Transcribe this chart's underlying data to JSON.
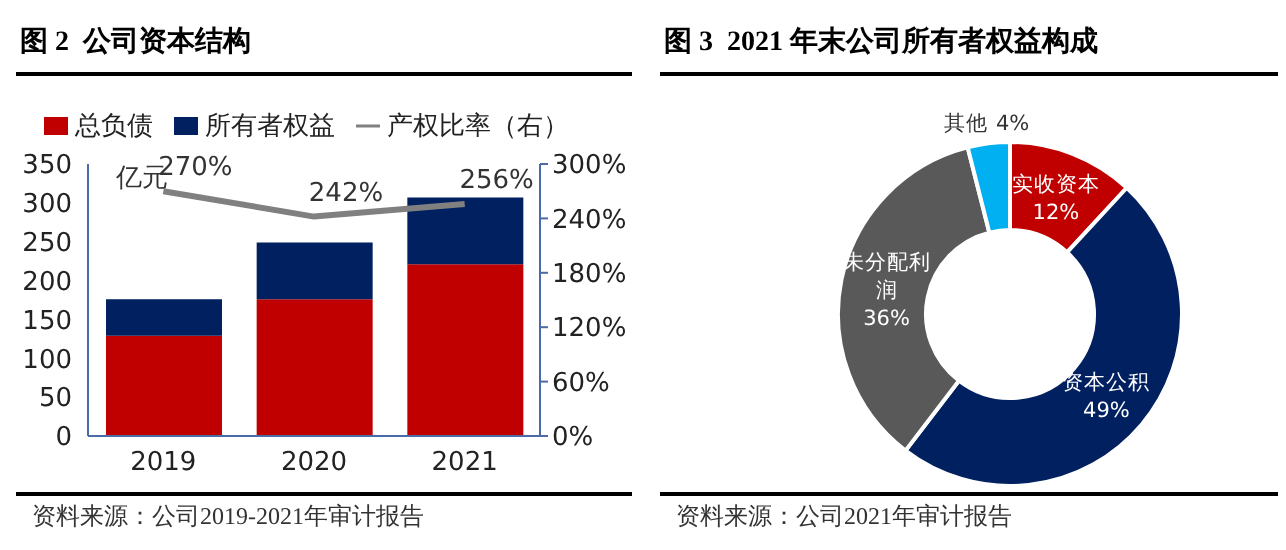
{
  "chart_data": [
    {
      "type": "bar",
      "title": "图 2  公司资本结构",
      "ylabel": "亿元",
      "categories": [
        "2019",
        "2020",
        "2021"
      ],
      "stacked": true,
      "series": [
        {
          "name": "总负债",
          "color": "#c00000",
          "values": [
            129,
            176,
            221
          ]
        },
        {
          "name": "所有者权益",
          "color": "#002060",
          "values": [
            47,
            73,
            86
          ]
        },
        {
          "name": "产权比率（右）",
          "type": "line",
          "axis": "y2",
          "color": "#808080",
          "values": [
            270,
            242,
            256
          ],
          "value_labels": [
            "270%",
            "242%",
            "256%"
          ]
        }
      ],
      "ylim": [
        0,
        350
      ],
      "yticks": [
        0,
        50,
        100,
        150,
        200,
        250,
        300,
        350
      ],
      "y2lim": [
        0,
        300
      ],
      "y2ticks": [
        {
          "value": 0,
          "label": "0%"
        },
        {
          "value": 60,
          "label": "60%"
        },
        {
          "value": 120,
          "label": "120%"
        },
        {
          "value": 180,
          "label": "180%"
        },
        {
          "value": 240,
          "label": "240%"
        },
        {
          "value": 300,
          "label": "300%"
        }
      ],
      "legend": "top",
      "grid": false,
      "marker": "none",
      "annotations": [
        "资料来源：公司2019-2021年审计报告"
      ]
    },
    {
      "type": "donut",
      "title": "图 3  2021 年末公司所有者权益构成",
      "categories": [
        "实收资本",
        "资本公积",
        "未分配利润",
        "其他"
      ],
      "values": [
        12,
        49,
        36,
        4
      ],
      "colors": [
        "#c00000",
        "#002060",
        "#595959",
        "#00b0f0"
      ],
      "value_labels": [
        "12%",
        "49%",
        "36%",
        "4%"
      ],
      "legend": false,
      "annotations": [
        "资料来源：公司2021年审计报告"
      ]
    }
  ]
}
